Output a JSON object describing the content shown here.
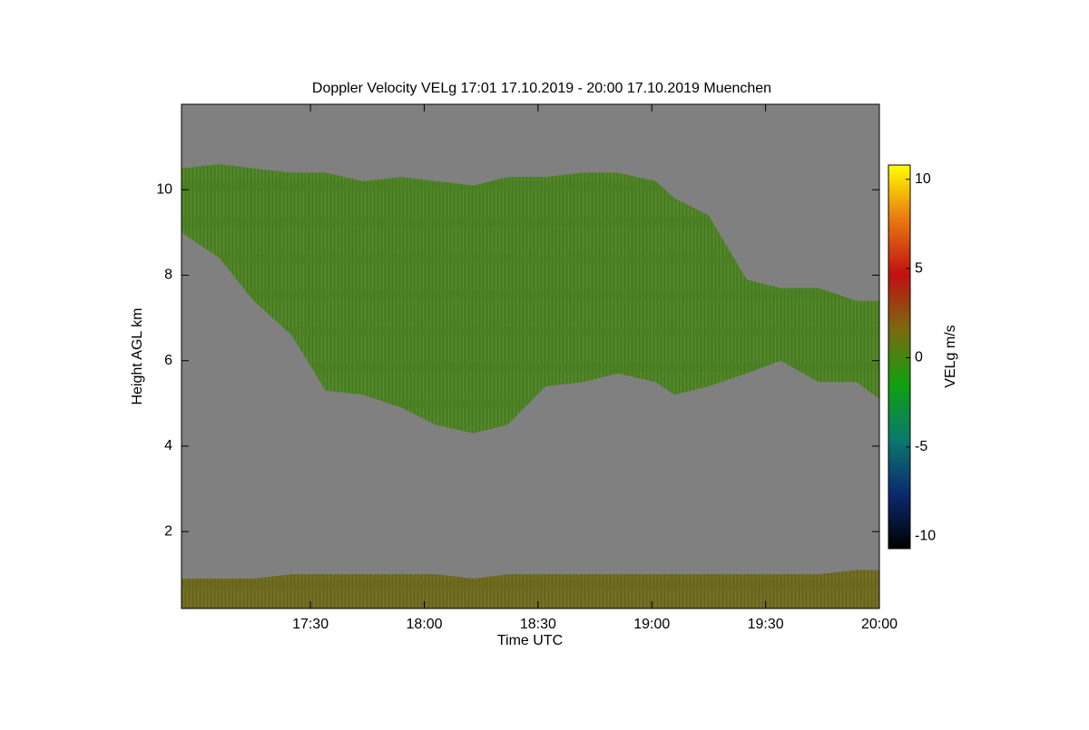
{
  "chart_data": {
    "type": "time-height",
    "title": "Doppler Velocity VELg   17:01 17.10.2019 - 20:00 17.10.2019 Muenchen",
    "x_label": "Time UTC",
    "y_label": "Height AGL km",
    "xlim": [
      -4,
      180
    ],
    "xticks": [
      {
        "value": 30,
        "label": "17:30"
      },
      {
        "value": 60,
        "label": "18:00"
      },
      {
        "value": 90,
        "label": "18:30"
      },
      {
        "value": 120,
        "label": "19:00"
      },
      {
        "value": 150,
        "label": "19:30"
      },
      {
        "value": 180,
        "label": "20:00"
      }
    ],
    "ylim": [
      0.2,
      12.0
    ],
    "yticks": [
      2,
      4,
      6,
      8,
      10
    ],
    "background_color": "#808080",
    "x": [
      -4,
      6,
      15,
      25,
      34,
      44,
      54,
      63,
      73,
      82,
      92,
      102,
      111,
      121,
      126,
      135,
      145,
      154,
      164,
      174,
      180
    ],
    "series": [
      {
        "color": "#4c8224",
        "top": [
          10.5,
          10.6,
          10.5,
          10.4,
          10.4,
          10.2,
          10.3,
          10.2,
          10.1,
          10.3,
          10.3,
          10.4,
          10.4,
          10.2,
          9.8,
          9.4,
          7.9,
          7.7,
          7.7,
          7.4,
          7.4
        ],
        "base": [
          9.0,
          8.4,
          7.4,
          6.6,
          5.3,
          5.2,
          4.9,
          4.5,
          4.3,
          4.5,
          5.4,
          5.5,
          5.7,
          5.5,
          5.2,
          5.4,
          5.7,
          6.0,
          5.5,
          5.5,
          5.1
        ]
      },
      {
        "color": "#6e6a1e",
        "top": [
          0.9,
          0.9,
          0.9,
          1.0,
          1.0,
          1.0,
          1.0,
          1.0,
          0.9,
          1.0,
          1.0,
          1.0,
          1.0,
          1.0,
          1.0,
          1.0,
          1.0,
          1.0,
          1.0,
          1.1,
          1.1
        ],
        "base": [
          0.2,
          0.2,
          0.2,
          0.2,
          0.2,
          0.2,
          0.2,
          0.2,
          0.2,
          0.2,
          0.2,
          0.2,
          0.2,
          0.2,
          0.2,
          0.2,
          0.2,
          0.2,
          0.2,
          0.2,
          0.2
        ]
      }
    ],
    "colorbar": {
      "label": "VELg m/s",
      "clim": [
        -10.7,
        10.8
      ],
      "ticks": [
        -10,
        -5,
        0,
        5,
        10
      ],
      "colormap": [
        "#000000",
        "#0b2a70",
        "#0a7a6a",
        "#10a010",
        "#7a6a10",
        "#c01010",
        "#e87810",
        "#ffff00"
      ]
    }
  }
}
